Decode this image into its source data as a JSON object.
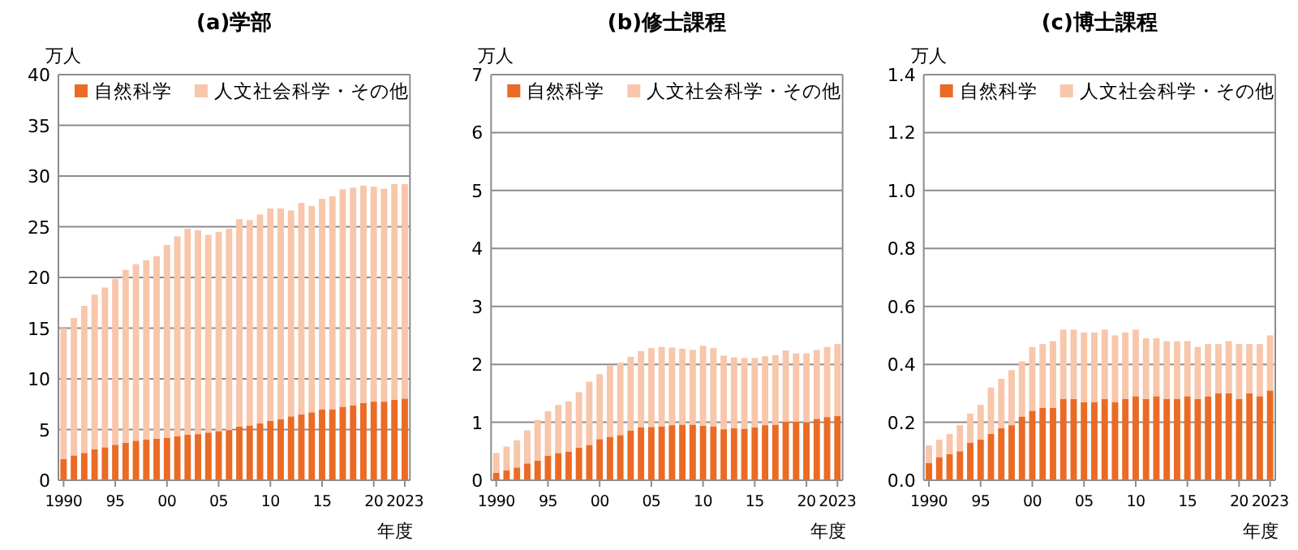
{
  "chart_data": [
    {
      "type": "bar",
      "title": "(a)学部",
      "ylabel": "万人",
      "xlabel": "年度",
      "stacked": true,
      "grid": "y",
      "legend": "top",
      "categories": [
        "1990",
        null,
        null,
        null,
        null,
        "95",
        null,
        null,
        null,
        null,
        "00",
        null,
        null,
        null,
        null,
        "05",
        null,
        null,
        null,
        null,
        "10",
        null,
        null,
        null,
        null,
        "15",
        null,
        null,
        null,
        null,
        "20",
        null,
        null,
        "2023"
      ],
      "ylim": [
        0,
        40
      ],
      "yticks": [
        0,
        5,
        10,
        15,
        20,
        25,
        30,
        35,
        40
      ],
      "series": [
        {
          "name": "自然科学",
          "color": "#ea6b25",
          "values": [
            2.1,
            2.45,
            2.7,
            3.05,
            3.25,
            3.5,
            3.7,
            3.9,
            4.0,
            4.1,
            4.2,
            4.35,
            4.5,
            4.55,
            4.7,
            4.85,
            4.95,
            5.3,
            5.4,
            5.6,
            5.85,
            6.0,
            6.3,
            6.5,
            6.7,
            7.0,
            7.0,
            7.25,
            7.4,
            7.6,
            7.75,
            7.75,
            7.95,
            8.05
          ]
        },
        {
          "name": "人文社会科学・その他",
          "color": "#f8c6aa",
          "values": [
            12.9,
            13.55,
            14.5,
            15.25,
            15.75,
            16.35,
            17.05,
            17.4,
            17.7,
            18.0,
            19.0,
            19.7,
            20.3,
            20.1,
            19.5,
            19.65,
            19.85,
            20.45,
            20.25,
            20.6,
            20.95,
            20.8,
            20.3,
            20.85,
            20.35,
            20.75,
            21.0,
            21.45,
            21.45,
            21.45,
            21.2,
            21.0,
            21.25,
            21.15
          ]
        }
      ]
    },
    {
      "type": "bar",
      "title": "(b)修士課程",
      "ylabel": "万人",
      "xlabel": "年度",
      "stacked": true,
      "grid": "y",
      "legend": "top",
      "categories": [
        "1990",
        null,
        null,
        null,
        null,
        "95",
        null,
        null,
        null,
        null,
        "00",
        null,
        null,
        null,
        null,
        "05",
        null,
        null,
        null,
        null,
        "10",
        null,
        null,
        null,
        null,
        "15",
        null,
        null,
        null,
        null,
        "20",
        null,
        null,
        "2023"
      ],
      "ylim": [
        0,
        7
      ],
      "yticks": [
        0,
        1,
        2,
        3,
        4,
        5,
        6,
        7
      ],
      "series": [
        {
          "name": "自然科学",
          "color": "#ea6b25",
          "values": [
            0.13,
            0.17,
            0.22,
            0.29,
            0.34,
            0.42,
            0.47,
            0.49,
            0.56,
            0.61,
            0.71,
            0.75,
            0.78,
            0.86,
            0.91,
            0.92,
            0.93,
            0.95,
            0.96,
            0.96,
            0.94,
            0.93,
            0.88,
            0.9,
            0.89,
            0.91,
            0.95,
            0.96,
            1.01,
            1.01,
            1.0,
            1.06,
            1.09,
            1.11
          ]
        },
        {
          "name": "人文社会科学・その他",
          "color": "#f8c6aa",
          "values": [
            0.34,
            0.41,
            0.47,
            0.57,
            0.7,
            0.77,
            0.83,
            0.87,
            0.96,
            1.09,
            1.12,
            1.23,
            1.25,
            1.27,
            1.32,
            1.36,
            1.37,
            1.34,
            1.31,
            1.29,
            1.38,
            1.35,
            1.27,
            1.22,
            1.22,
            1.2,
            1.19,
            1.2,
            1.23,
            1.18,
            1.19,
            1.19,
            1.21,
            1.24
          ]
        }
      ]
    },
    {
      "type": "bar",
      "title": "(c)博士課程",
      "ylabel": "万人",
      "xlabel": "年度",
      "stacked": true,
      "grid": "y",
      "legend": "top",
      "categories": [
        "1990",
        null,
        null,
        null,
        null,
        "95",
        null,
        null,
        null,
        null,
        "00",
        null,
        null,
        null,
        null,
        "05",
        null,
        null,
        null,
        null,
        "10",
        null,
        null,
        null,
        null,
        "15",
        null,
        null,
        null,
        null,
        "20",
        null,
        null,
        "2023"
      ],
      "ylim": [
        0,
        1.4
      ],
      "yticks": [
        {
          "value": 0,
          "label": "0.0"
        },
        0.2,
        0.4,
        0.6,
        0.8,
        {
          "value": 1,
          "label": "1.0"
        },
        1.2,
        1.4
      ],
      "series": [
        {
          "name": "自然科学",
          "color": "#ea6b25",
          "values": [
            0.06,
            0.08,
            0.09,
            0.1,
            0.13,
            0.14,
            0.16,
            0.18,
            0.19,
            0.22,
            0.24,
            0.25,
            0.25,
            0.28,
            0.28,
            0.27,
            0.27,
            0.28,
            0.27,
            0.28,
            0.29,
            0.28,
            0.29,
            0.28,
            0.28,
            0.29,
            0.28,
            0.29,
            0.3,
            0.3,
            0.28,
            0.3,
            0.29,
            0.31
          ]
        },
        {
          "name": "人文社会科学・その他",
          "color": "#f8c6aa",
          "values": [
            0.06,
            0.06,
            0.07,
            0.09,
            0.1,
            0.12,
            0.16,
            0.17,
            0.19,
            0.19,
            0.22,
            0.22,
            0.23,
            0.24,
            0.24,
            0.24,
            0.24,
            0.24,
            0.23,
            0.23,
            0.23,
            0.21,
            0.2,
            0.2,
            0.2,
            0.19,
            0.18,
            0.18,
            0.17,
            0.18,
            0.19,
            0.17,
            0.18,
            0.19
          ]
        }
      ]
    }
  ]
}
